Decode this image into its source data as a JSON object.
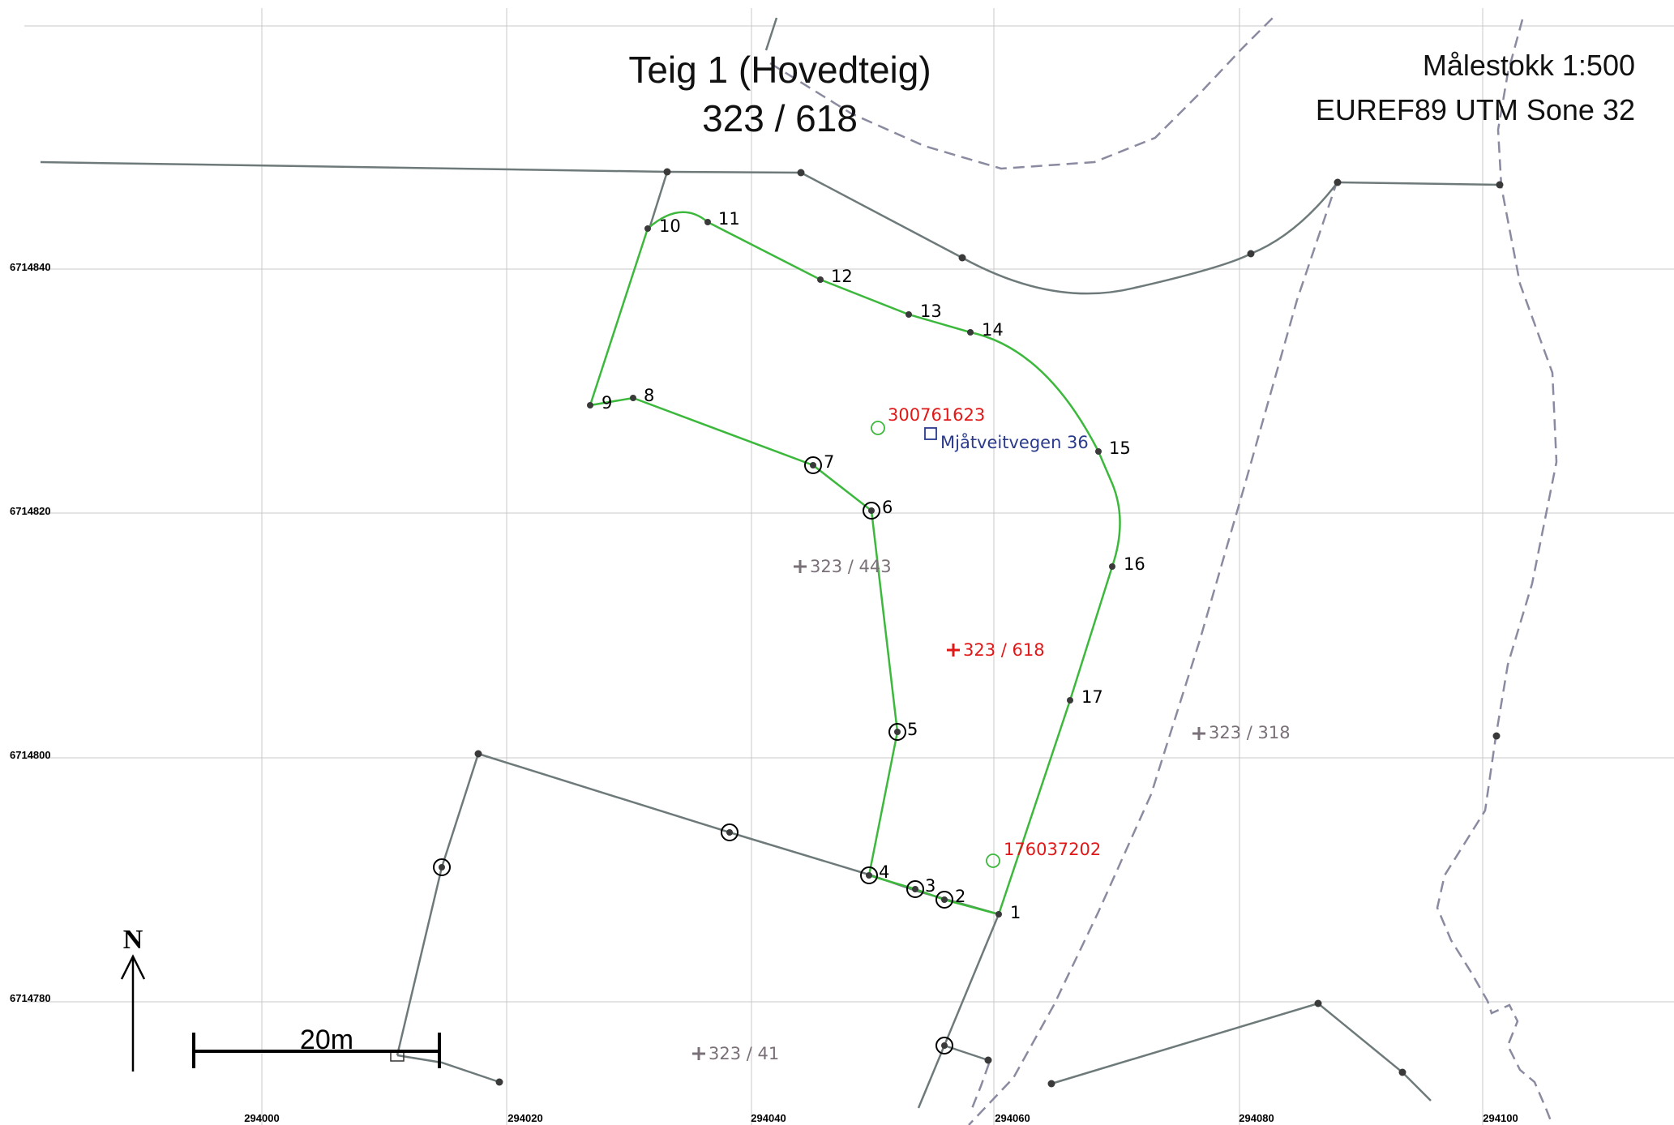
{
  "title": {
    "line1": "Teig 1 (Hovedteig)",
    "line2": "323 / 618"
  },
  "scale_label": "Målestokk 1:500",
  "crs_label": "EUREF89 UTM Sone 32",
  "north_label": "N",
  "scalebar_label": "20m",
  "grid": {
    "x_ticks": [
      "294000",
      "294020",
      "294040",
      "294060",
      "294080",
      "294100"
    ],
    "y_ticks": [
      "6714840",
      "6714820",
      "6714800",
      "6714780"
    ]
  },
  "point_numbers": [
    "1",
    "2",
    "3",
    "4",
    "5",
    "6",
    "7",
    "8",
    "9",
    "10",
    "11",
    "12",
    "13",
    "14",
    "15",
    "16",
    "17"
  ],
  "parcel_labels": {
    "main": "323 / 618",
    "p443": "323 / 443",
    "p318": "323 / 318",
    "p41": "323 / 41"
  },
  "building_ids": {
    "b1": "300761623",
    "b2": "176037202"
  },
  "address_label": "Mjåtveitvegen 36",
  "colors": {
    "parcel_boundary": "#3cb83c",
    "neighbor_boundary": "#6e7a7a",
    "dashed_line": "#8a8aa0",
    "main_label": "#e01818",
    "neighbor_label": "#7a7078",
    "address": "#2a3a8c",
    "grid": "#c8c8c8"
  }
}
